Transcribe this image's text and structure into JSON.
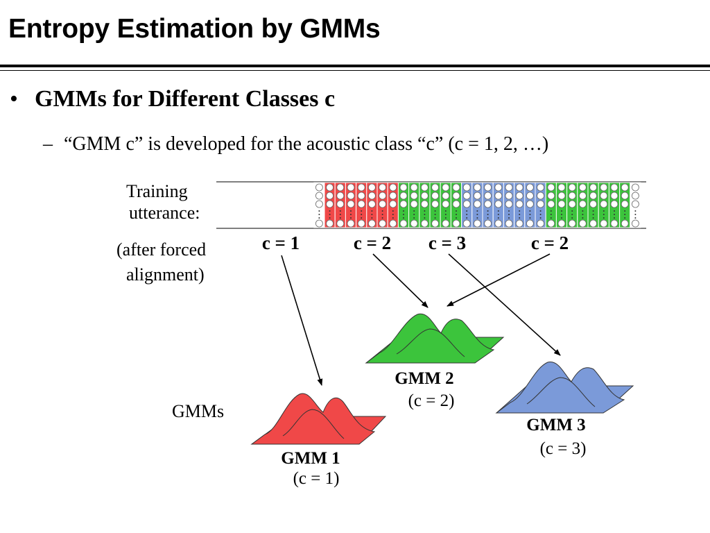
{
  "slide": {
    "title": "Entropy Estimation by GMMs",
    "bullet": "GMMs for Different Classes c",
    "sub_bullet": "“GMM c” is developed for the acoustic class “c” (c = 1, 2, …)",
    "bullet_symbol": "•",
    "sub_bullet_symbol": "–"
  },
  "diagram": {
    "training_label_line1": "Training",
    "training_label_line2": "utterance:",
    "alignment_line1": "(after forced",
    "alignment_line2": "alignment)",
    "gmms_label": "GMMs",
    "segments": [
      {
        "label": "c = 1",
        "class": 1,
        "frames": 7
      },
      {
        "label": "c = 2",
        "class": 2,
        "frames": 6
      },
      {
        "label": "c = 3",
        "class": 3,
        "frames": 8
      },
      {
        "label": "c = 2",
        "class": 2,
        "frames": 8
      }
    ],
    "models": [
      {
        "name": "GMM 1",
        "class_label": "(c = 1)",
        "class": 1
      },
      {
        "name": "GMM 2",
        "class_label": "(c = 2)",
        "class": 2
      },
      {
        "name": "GMM 3",
        "class_label": "(c = 3)",
        "class": 3
      }
    ],
    "colors": {
      "class1": "#f04848",
      "class2": "#3cc43c",
      "class3": "#7b9ad9",
      "silence": "#ffffff"
    }
  }
}
